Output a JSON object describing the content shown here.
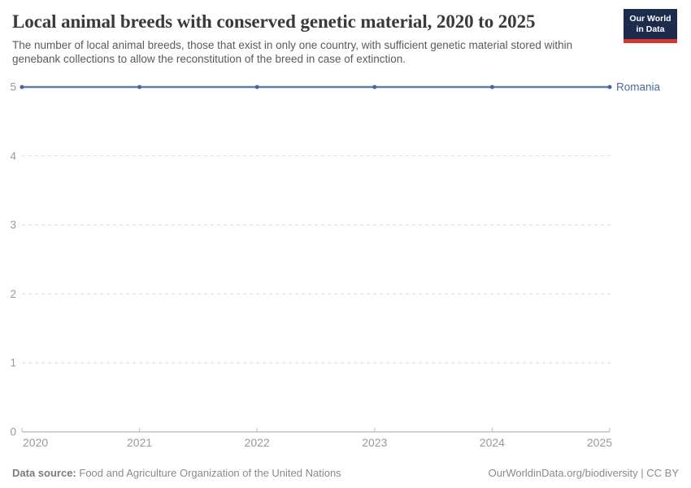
{
  "header": {
    "title": "Local animal breeds with conserved genetic material, 2020 to 2025",
    "subtitle": "The number of local animal breeds, those that exist in only one country, with sufficient genetic material stored within genebank collections to allow the reconstitution of the breed in case of extinction.",
    "logo": {
      "line1": "Our World",
      "line2": "in Data",
      "bg_color": "#1d2c4c",
      "accent_color": "#d7382d"
    }
  },
  "chart_data": {
    "type": "line",
    "title": "Local animal breeds with conserved genetic material, 2020 to 2025",
    "x": [
      2020,
      2021,
      2022,
      2023,
      2024,
      2025
    ],
    "series": [
      {
        "name": "Romania",
        "values": [
          5,
          5,
          5,
          5,
          5,
          5
        ],
        "color": "#617ea6",
        "marker_color": "#47639a",
        "label_color": "#4b6a9b"
      }
    ],
    "xlabel": "",
    "ylabel": "",
    "ylim": [
      0,
      5
    ],
    "yticks": [
      0,
      1,
      2,
      3,
      4,
      5
    ],
    "grid": true,
    "gridline_color": "#d9d9d9",
    "axis_color": "#a5a5a5",
    "tick_color": "#bbbbbb",
    "tick_label_color": "#999999",
    "legend_position": "end-of-line"
  },
  "footer": {
    "source_label": "Data source:",
    "source_text": "Food and Agriculture Organization of the United Nations",
    "credit": "OurWorldinData.org/biodiversity | CC BY"
  }
}
